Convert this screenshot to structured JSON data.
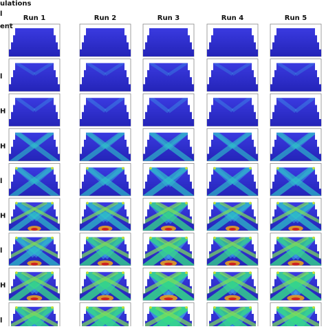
{
  "header": {
    "title": "ulations",
    "lines": [
      "l",
      "ent"
    ]
  },
  "columns": [
    "Run 1",
    "Run 2",
    "Run 3",
    "Run 4",
    "Run 5"
  ],
  "row_labels": [
    "l",
    "H",
    "H",
    "l",
    "H",
    "l",
    "H",
    "l"
  ]
}
